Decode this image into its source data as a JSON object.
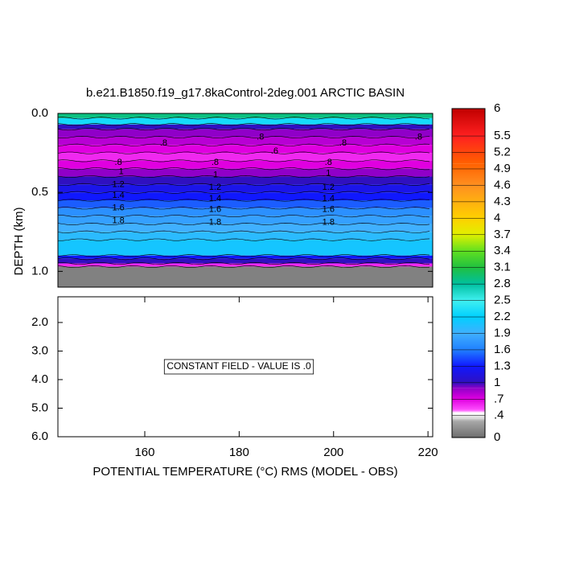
{
  "chart_data": {
    "type": "contour",
    "title": "b.e21.B1850.f19_g17.8kaControl-2deg.001 ARCTIC BASIN",
    "xlabel": "POTENTIAL TEMPERATURE (°C) RMS (MODEL - OBS)",
    "ylabel": "DEPTH (km)",
    "xlim": [
      141.6,
      221
    ],
    "xticks": [
      160,
      180,
      200,
      220
    ],
    "panels": [
      {
        "ylim": [
          0,
          1.1
        ],
        "yticks": [
          {
            "value": 0,
            "label": "0.0"
          },
          {
            "value": 0.5,
            "label": "0.5"
          },
          {
            "value": 1,
            "label": "1.0"
          }
        ],
        "depth_edges": [
          0,
          0.03,
          0.07,
          0.1,
          0.15,
          0.2,
          0.25,
          0.3,
          0.35,
          0.4,
          0.45,
          0.5,
          0.55,
          0.6,
          0.65,
          0.7,
          0.75,
          0.8,
          0.9,
          0.92,
          0.95,
          0.97,
          1.1
        ],
        "values": [
          2.9,
          2.3,
          1.0,
          0.9,
          0.8,
          0.7,
          0.6,
          0.7,
          0.9,
          1.0,
          1.2,
          1.3,
          1.5,
          1.7,
          1.8,
          1.9,
          2.0,
          2.1,
          1.3,
          1.0,
          0.6,
          0.1
        ],
        "contour_labels": [
          {
            "x": 154.4,
            "depth": 0.31,
            "level": {
              "value": 0.8,
              "label": ".8"
            }
          },
          {
            "x": 155.0,
            "depth": 0.37,
            "level": 1
          },
          {
            "x": 154.4,
            "depth": 0.45,
            "level": 1.2
          },
          {
            "x": 154.4,
            "depth": 0.52,
            "level": 1.4
          },
          {
            "x": 154.4,
            "depth": 0.6,
            "level": 1.6
          },
          {
            "x": 154.4,
            "depth": 0.68,
            "level": 1.8
          },
          {
            "x": 164.0,
            "depth": 0.19,
            "level": {
              "value": 0.8,
              "label": ".8"
            }
          },
          {
            "x": 174.9,
            "depth": 0.31,
            "level": {
              "value": 0.8,
              "label": ".8"
            }
          },
          {
            "x": 175.0,
            "depth": 0.39,
            "level": 1
          },
          {
            "x": 174.9,
            "depth": 0.47,
            "level": 1.2
          },
          {
            "x": 174.9,
            "depth": 0.54,
            "level": 1.4
          },
          {
            "x": 174.9,
            "depth": 0.61,
            "level": 1.6
          },
          {
            "x": 174.9,
            "depth": 0.69,
            "level": 1.8
          },
          {
            "x": 184.5,
            "depth": 0.15,
            "level": {
              "value": 0.8,
              "label": ".8"
            }
          },
          {
            "x": 187.5,
            "depth": 0.24,
            "level": {
              "value": 0.6,
              "label": ".6"
            }
          },
          {
            "x": 198.9,
            "depth": 0.31,
            "level": {
              "value": 0.8,
              "label": ".8"
            }
          },
          {
            "x": 198.9,
            "depth": 0.38,
            "level": 1
          },
          {
            "x": 198.9,
            "depth": 0.47,
            "level": 1.2
          },
          {
            "x": 198.9,
            "depth": 0.54,
            "level": 1.4
          },
          {
            "x": 198.9,
            "depth": 0.61,
            "level": 1.6
          },
          {
            "x": 198.9,
            "depth": 0.69,
            "level": 1.8
          },
          {
            "x": 202.0,
            "depth": 0.19,
            "level": {
              "value": 0.8,
              "label": ".8"
            }
          },
          {
            "x": 218.0,
            "depth": 0.15,
            "level": {
              "value": 0.8,
              "label": ".8"
            }
          }
        ]
      },
      {
        "ylim": [
          1.1,
          6
        ],
        "yticks": [
          {
            "value": 2,
            "label": "2.0"
          },
          {
            "value": 3,
            "label": "3.0"
          },
          {
            "value": 4,
            "label": "4.0"
          },
          {
            "value": 5,
            "label": "5.0"
          },
          {
            "value": 6,
            "label": "6.0"
          }
        ],
        "annotation": "CONSTANT FIELD - VALUE IS .0"
      }
    ],
    "colorbar": {
      "lim": [
        0,
        6
      ],
      "ticks": [
        0,
        {
          "value": 0.4,
          "label": ".4"
        },
        {
          "value": 0.7,
          "label": ".7"
        },
        1,
        1.3,
        1.6,
        1.9,
        2.2,
        2.5,
        2.8,
        3.1,
        3.4,
        3.7,
        4,
        4.3,
        4.6,
        4.9,
        5.2,
        5.5,
        6
      ]
    },
    "colormap": [
      {
        "value": 0,
        "color": "#6e6e6e"
      },
      {
        "value": 0.3,
        "color": "#a8a8a8"
      },
      {
        "value": 0.35,
        "color": "#d8d8d8"
      },
      {
        "value": 0.45,
        "color": "#ffffff"
      },
      {
        "value": 0.5,
        "color": "#ff50ff"
      },
      {
        "value": 0.7,
        "color": "#e000e0"
      },
      {
        "value": 0.9,
        "color": "#9000c8"
      },
      {
        "value": 1.0,
        "color": "#3010c0"
      },
      {
        "value": 1.3,
        "color": "#1018ff"
      },
      {
        "value": 1.6,
        "color": "#2080ff"
      },
      {
        "value": 1.9,
        "color": "#40b0ff"
      },
      {
        "value": 2.2,
        "color": "#00d0ff"
      },
      {
        "value": 2.5,
        "color": "#40f0f0"
      },
      {
        "value": 2.8,
        "color": "#00c0a0"
      },
      {
        "value": 3.1,
        "color": "#20c040"
      },
      {
        "value": 3.4,
        "color": "#60e020"
      },
      {
        "value": 3.7,
        "color": "#e0f000"
      },
      {
        "value": 4.0,
        "color": "#ffd000"
      },
      {
        "value": 4.6,
        "color": "#ff9020"
      },
      {
        "value": 5.0,
        "color": "#ff6000"
      },
      {
        "value": 5.5,
        "color": "#ff2020"
      },
      {
        "value": 6,
        "color": "#c00000"
      }
    ]
  }
}
